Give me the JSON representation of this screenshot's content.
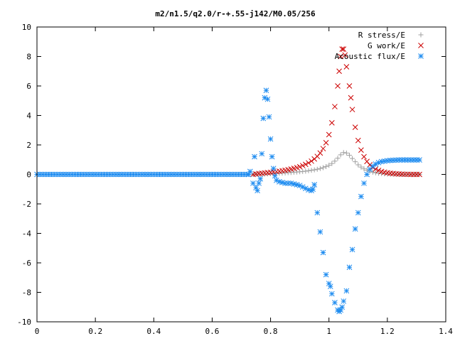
{
  "chart_data": {
    "type": "scatter",
    "title": "m2/n1.5/q2.0/r-+.55-j142/M0.05/256",
    "xlabel": "",
    "ylabel": "",
    "xlim": [
      0,
      1.4
    ],
    "ylim": [
      -10,
      10
    ],
    "x_ticks": [
      "0",
      "0.2",
      "0.4",
      "0.6",
      "0.8",
      "1",
      "1.2",
      "1.4"
    ],
    "y_ticks": [
      "10",
      "8",
      "6",
      "4",
      "2",
      "0",
      "-2",
      "-4",
      "-6",
      "-8",
      "-10"
    ],
    "grid": false,
    "legend_position": "top-right",
    "series": [
      {
        "name": "R stress/E",
        "marker": "plus",
        "color": "#a0a0a0",
        "points": [
          [
            0.74,
            0.0
          ],
          [
            0.75,
            0.01
          ],
          [
            0.76,
            0.02
          ],
          [
            0.77,
            0.02
          ],
          [
            0.78,
            0.03
          ],
          [
            0.79,
            0.04
          ],
          [
            0.8,
            0.05
          ],
          [
            0.81,
            0.06
          ],
          [
            0.82,
            0.07
          ],
          [
            0.83,
            0.08
          ],
          [
            0.84,
            0.09
          ],
          [
            0.85,
            0.1
          ],
          [
            0.86,
            0.12
          ],
          [
            0.87,
            0.13
          ],
          [
            0.88,
            0.15
          ],
          [
            0.89,
            0.16
          ],
          [
            0.9,
            0.18
          ],
          [
            0.91,
            0.2
          ],
          [
            0.92,
            0.22
          ],
          [
            0.93,
            0.25
          ],
          [
            0.94,
            0.28
          ],
          [
            0.95,
            0.31
          ],
          [
            0.96,
            0.35
          ],
          [
            0.97,
            0.4
          ],
          [
            0.98,
            0.46
          ],
          [
            0.99,
            0.53
          ],
          [
            1.0,
            0.62
          ],
          [
            1.01,
            0.74
          ],
          [
            1.02,
            0.9
          ],
          [
            1.03,
            1.1
          ],
          [
            1.04,
            1.33
          ],
          [
            1.05,
            1.48
          ],
          [
            1.06,
            1.45
          ],
          [
            1.07,
            1.3
          ],
          [
            1.08,
            1.08
          ],
          [
            1.09,
            0.86
          ],
          [
            1.1,
            0.65
          ],
          [
            1.11,
            0.5
          ],
          [
            1.12,
            0.38
          ],
          [
            1.13,
            0.28
          ],
          [
            1.14,
            0.21
          ],
          [
            1.15,
            0.15
          ],
          [
            1.16,
            0.11
          ],
          [
            1.17,
            0.08
          ],
          [
            1.18,
            0.06
          ],
          [
            1.19,
            0.04
          ],
          [
            1.2,
            0.03
          ],
          [
            1.21,
            0.02
          ],
          [
            1.22,
            0.02
          ],
          [
            1.23,
            0.01
          ],
          [
            1.24,
            0.01
          ],
          [
            1.25,
            0.0
          ],
          [
            1.26,
            0.0
          ],
          [
            1.27,
            0.0
          ],
          [
            1.28,
            0.0
          ],
          [
            1.29,
            0.0
          ],
          [
            1.3,
            0.0
          ],
          [
            1.31,
            0.0
          ]
        ]
      },
      {
        "name": "G work/E",
        "marker": "cross",
        "color": "#cc0000",
        "points": [
          [
            0.74,
            0.0
          ],
          [
            0.75,
            0.03
          ],
          [
            0.76,
            0.06
          ],
          [
            0.77,
            0.08
          ],
          [
            0.78,
            0.1
          ],
          [
            0.79,
            0.12
          ],
          [
            0.8,
            0.14
          ],
          [
            0.81,
            0.17
          ],
          [
            0.82,
            0.19
          ],
          [
            0.83,
            0.22
          ],
          [
            0.84,
            0.25
          ],
          [
            0.85,
            0.28
          ],
          [
            0.86,
            0.32
          ],
          [
            0.87,
            0.36
          ],
          [
            0.88,
            0.41
          ],
          [
            0.89,
            0.46
          ],
          [
            0.9,
            0.52
          ],
          [
            0.91,
            0.6
          ],
          [
            0.92,
            0.68
          ],
          [
            0.93,
            0.78
          ],
          [
            0.94,
            0.9
          ],
          [
            0.95,
            1.05
          ],
          [
            0.96,
            1.22
          ],
          [
            0.97,
            1.45
          ],
          [
            0.98,
            1.75
          ],
          [
            0.99,
            2.15
          ],
          [
            1.0,
            2.7
          ],
          [
            1.01,
            3.5
          ],
          [
            1.02,
            4.6
          ],
          [
            1.03,
            6.0
          ],
          [
            1.035,
            7.0
          ],
          [
            1.04,
            8.0
          ],
          [
            1.045,
            8.5
          ],
          [
            1.05,
            8.5
          ],
          [
            1.055,
            8.1
          ],
          [
            1.06,
            7.3
          ],
          [
            1.07,
            6.0
          ],
          [
            1.075,
            5.2
          ],
          [
            1.08,
            4.4
          ],
          [
            1.09,
            3.2
          ],
          [
            1.1,
            2.3
          ],
          [
            1.11,
            1.65
          ],
          [
            1.12,
            1.2
          ],
          [
            1.13,
            0.88
          ],
          [
            1.14,
            0.65
          ],
          [
            1.15,
            0.48
          ],
          [
            1.16,
            0.36
          ],
          [
            1.17,
            0.27
          ],
          [
            1.18,
            0.2
          ],
          [
            1.19,
            0.15
          ],
          [
            1.2,
            0.11
          ],
          [
            1.21,
            0.08
          ],
          [
            1.22,
            0.06
          ],
          [
            1.23,
            0.04
          ],
          [
            1.24,
            0.03
          ],
          [
            1.25,
            0.02
          ],
          [
            1.26,
            0.01
          ],
          [
            1.27,
            0.01
          ],
          [
            1.28,
            0.0
          ],
          [
            1.29,
            0.0
          ],
          [
            1.3,
            0.0
          ],
          [
            1.31,
            0.0
          ]
        ]
      },
      {
        "name": "Acoustic flux/E",
        "marker": "star",
        "color": "#1e8cf0",
        "points": [
          [
            0.0,
            0.0
          ],
          [
            0.01,
            0.0
          ],
          [
            0.02,
            0.0
          ],
          [
            0.03,
            0.0
          ],
          [
            0.04,
            0.0
          ],
          [
            0.05,
            0.0
          ],
          [
            0.06,
            0.0
          ],
          [
            0.07,
            0.0
          ],
          [
            0.08,
            0.0
          ],
          [
            0.09,
            0.0
          ],
          [
            0.1,
            0.0
          ],
          [
            0.11,
            0.0
          ],
          [
            0.12,
            0.0
          ],
          [
            0.13,
            0.0
          ],
          [
            0.14,
            0.0
          ],
          [
            0.15,
            0.0
          ],
          [
            0.16,
            0.0
          ],
          [
            0.17,
            0.0
          ],
          [
            0.18,
            0.0
          ],
          [
            0.19,
            0.0
          ],
          [
            0.2,
            0.0
          ],
          [
            0.21,
            0.0
          ],
          [
            0.22,
            0.0
          ],
          [
            0.23,
            0.0
          ],
          [
            0.24,
            0.0
          ],
          [
            0.25,
            0.0
          ],
          [
            0.26,
            0.0
          ],
          [
            0.27,
            0.0
          ],
          [
            0.28,
            0.0
          ],
          [
            0.29,
            0.0
          ],
          [
            0.3,
            0.0
          ],
          [
            0.31,
            0.0
          ],
          [
            0.32,
            0.0
          ],
          [
            0.33,
            0.0
          ],
          [
            0.34,
            0.0
          ],
          [
            0.35,
            0.0
          ],
          [
            0.36,
            0.0
          ],
          [
            0.37,
            0.0
          ],
          [
            0.38,
            0.0
          ],
          [
            0.39,
            0.0
          ],
          [
            0.4,
            0.0
          ],
          [
            0.41,
            0.0
          ],
          [
            0.42,
            0.0
          ],
          [
            0.43,
            0.0
          ],
          [
            0.44,
            0.0
          ],
          [
            0.45,
            0.0
          ],
          [
            0.46,
            0.0
          ],
          [
            0.47,
            0.0
          ],
          [
            0.48,
            0.0
          ],
          [
            0.49,
            0.0
          ],
          [
            0.5,
            0.0
          ],
          [
            0.51,
            0.0
          ],
          [
            0.52,
            0.0
          ],
          [
            0.53,
            0.0
          ],
          [
            0.54,
            0.0
          ],
          [
            0.55,
            0.0
          ],
          [
            0.56,
            0.0
          ],
          [
            0.57,
            0.0
          ],
          [
            0.58,
            0.0
          ],
          [
            0.59,
            0.0
          ],
          [
            0.6,
            0.0
          ],
          [
            0.61,
            0.0
          ],
          [
            0.62,
            0.0
          ],
          [
            0.63,
            0.0
          ],
          [
            0.64,
            0.0
          ],
          [
            0.65,
            0.0
          ],
          [
            0.66,
            0.0
          ],
          [
            0.67,
            0.0
          ],
          [
            0.68,
            0.0
          ],
          [
            0.69,
            0.0
          ],
          [
            0.7,
            0.0
          ],
          [
            0.71,
            0.0
          ],
          [
            0.72,
            0.0
          ],
          [
            0.725,
            0.0
          ],
          [
            0.73,
            0.2
          ],
          [
            0.74,
            -0.6
          ],
          [
            0.745,
            1.2
          ],
          [
            0.75,
            -0.9
          ],
          [
            0.755,
            -1.1
          ],
          [
            0.76,
            -0.6
          ],
          [
            0.765,
            -0.3
          ],
          [
            0.77,
            1.4
          ],
          [
            0.775,
            3.8
          ],
          [
            0.78,
            5.2
          ],
          [
            0.785,
            5.7
          ],
          [
            0.79,
            5.1
          ],
          [
            0.795,
            3.9
          ],
          [
            0.8,
            2.4
          ],
          [
            0.805,
            1.2
          ],
          [
            0.81,
            0.4
          ],
          [
            0.815,
            -0.1
          ],
          [
            0.82,
            -0.4
          ],
          [
            0.83,
            -0.5
          ],
          [
            0.84,
            -0.55
          ],
          [
            0.85,
            -0.6
          ],
          [
            0.86,
            -0.6
          ],
          [
            0.87,
            -0.6
          ],
          [
            0.88,
            -0.65
          ],
          [
            0.89,
            -0.7
          ],
          [
            0.9,
            -0.75
          ],
          [
            0.91,
            -0.85
          ],
          [
            0.92,
            -0.95
          ],
          [
            0.93,
            -1.05
          ],
          [
            0.94,
            -1.1
          ],
          [
            0.945,
            -1.0
          ],
          [
            0.95,
            -0.7
          ],
          [
            0.96,
            -2.6
          ],
          [
            0.97,
            -3.9
          ],
          [
            0.98,
            -5.3
          ],
          [
            0.99,
            -6.8
          ],
          [
            1.0,
            -7.4
          ],
          [
            1.005,
            -7.6
          ],
          [
            1.01,
            -8.1
          ],
          [
            1.02,
            -8.7
          ],
          [
            1.03,
            -9.2
          ],
          [
            1.035,
            -9.3
          ],
          [
            1.04,
            -9.2
          ],
          [
            1.045,
            -9.0
          ],
          [
            1.05,
            -8.6
          ],
          [
            1.06,
            -7.9
          ],
          [
            1.07,
            -6.3
          ],
          [
            1.08,
            -5.1
          ],
          [
            1.09,
            -3.7
          ],
          [
            1.1,
            -2.6
          ],
          [
            1.11,
            -1.5
          ],
          [
            1.12,
            -0.6
          ],
          [
            1.13,
            0.0
          ],
          [
            1.14,
            0.35
          ],
          [
            1.15,
            0.55
          ],
          [
            1.16,
            0.7
          ],
          [
            1.17,
            0.8
          ],
          [
            1.18,
            0.87
          ],
          [
            1.19,
            0.9
          ],
          [
            1.2,
            0.93
          ],
          [
            1.21,
            0.95
          ],
          [
            1.22,
            0.96
          ],
          [
            1.23,
            0.97
          ],
          [
            1.24,
            0.98
          ],
          [
            1.25,
            0.98
          ],
          [
            1.26,
            0.98
          ],
          [
            1.27,
            0.98
          ],
          [
            1.28,
            0.98
          ],
          [
            1.29,
            0.98
          ],
          [
            1.3,
            0.98
          ],
          [
            1.31,
            0.98
          ]
        ]
      }
    ]
  }
}
